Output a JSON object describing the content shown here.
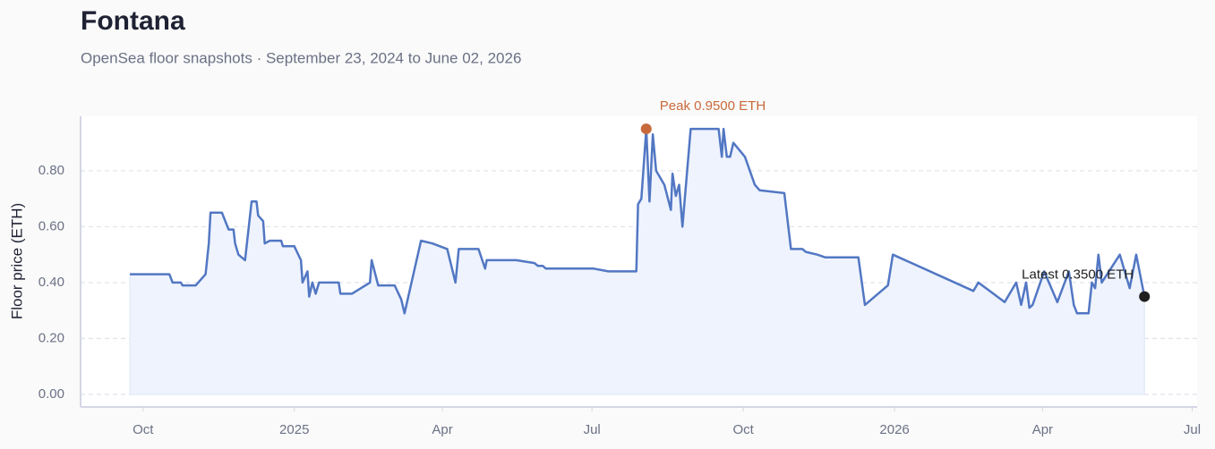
{
  "chart_data": {
    "type": "line",
    "title": "Fontana",
    "subtitle": "OpenSea floor snapshots · September 23, 2024 to June 02, 2026",
    "y_label": "Floor price (ETH)",
    "annotations": {
      "peak": "Peak 0.9500 ETH",
      "latest": "Latest 0.3500 ETH"
    },
    "color": "#5277c3",
    "area_color": "#eef3fd",
    "peak_color": "#c8693b",
    "latest_color": "#1f1f1f",
    "grid": true,
    "xlim": [
      "2024-08-24",
      "2026-07-04"
    ],
    "xticks": [
      {
        "value": "2024-10-01",
        "label": "Oct"
      },
      {
        "value": "2025-01-01",
        "label": "2025"
      },
      {
        "value": "2025-04-01",
        "label": "Apr"
      },
      {
        "value": "2025-07-01",
        "label": "Jul"
      },
      {
        "value": "2025-10-01",
        "label": "Oct"
      },
      {
        "value": "2026-01-01",
        "label": "2026"
      },
      {
        "value": "2026-04-01",
        "label": "Apr"
      },
      {
        "value": "2026-07-01",
        "label": "Jul"
      }
    ],
    "ylim": [
      -0.045,
      0.995
    ],
    "yticks": [
      {
        "value": 0,
        "label": "0.00"
      },
      {
        "value": 0.2,
        "label": "0.20"
      },
      {
        "value": 0.4,
        "label": "0.40"
      },
      {
        "value": 0.6,
        "label": "0.60"
      },
      {
        "value": 0.8,
        "label": "0.80"
      }
    ],
    "x": [
      "2024-09-23",
      "2024-10-17",
      "2024-10-19",
      "2024-10-24",
      "2024-10-25",
      "2024-11-02",
      "2024-11-08",
      "2024-11-10",
      "2024-11-11",
      "2024-11-18",
      "2024-11-22",
      "2024-11-25",
      "2024-11-26",
      "2024-11-28",
      "2024-12-02",
      "2024-12-06",
      "2024-12-09",
      "2024-12-10",
      "2024-12-13",
      "2024-12-14",
      "2024-12-17",
      "2024-12-24",
      "2024-12-25",
      "2025-01-01",
      "2025-01-05",
      "2025-01-06",
      "2025-01-09",
      "2025-01-10",
      "2025-01-12",
      "2025-01-14",
      "2025-01-16",
      "2025-01-18",
      "2025-01-28",
      "2025-01-29",
      "2025-02-05",
      "2025-02-16",
      "2025-02-17",
      "2025-02-21",
      "2025-03-03",
      "2025-03-07",
      "2025-03-09",
      "2025-03-19",
      "2025-03-26",
      "2025-04-04",
      "2025-04-09",
      "2025-04-11",
      "2025-04-23",
      "2025-04-27",
      "2025-04-28",
      "2025-05-16",
      "2025-05-27",
      "2025-05-29",
      "2025-06-01",
      "2025-06-03",
      "2025-07-02",
      "2025-07-11",
      "2025-07-28",
      "2025-07-29",
      "2025-07-31",
      "2025-08-03",
      "2025-08-05",
      "2025-08-07",
      "2025-08-09",
      "2025-08-14",
      "2025-08-18",
      "2025-08-19",
      "2025-08-21",
      "2025-08-23",
      "2025-08-25",
      "2025-08-30",
      "2025-09-16",
      "2025-09-18",
      "2025-09-19",
      "2025-09-21",
      "2025-09-23",
      "2025-09-25",
      "2025-10-02",
      "2025-10-08",
      "2025-10-11",
      "2025-10-26",
      "2025-10-30",
      "2025-11-06",
      "2025-11-08",
      "2025-11-15",
      "2025-11-20",
      "2025-12-10",
      "2025-12-14",
      "2025-12-28",
      "2025-12-31",
      "2026-02-18",
      "2026-02-21",
      "2026-03-09",
      "2026-03-16",
      "2026-03-19",
      "2026-03-22",
      "2026-03-24",
      "2026-03-26",
      "2026-04-02",
      "2026-04-10",
      "2026-04-17",
      "2026-04-20",
      "2026-04-22",
      "2026-04-29",
      "2026-05-01",
      "2026-05-03",
      "2026-05-05",
      "2026-05-07",
      "2026-05-18",
      "2026-05-24",
      "2026-05-28",
      "2026-06-02"
    ],
    "values": [
      0.43,
      0.43,
      0.4,
      0.4,
      0.39,
      0.39,
      0.43,
      0.54,
      0.65,
      0.65,
      0.59,
      0.59,
      0.54,
      0.5,
      0.48,
      0.69,
      0.69,
      0.64,
      0.62,
      0.54,
      0.55,
      0.55,
      0.53,
      0.53,
      0.48,
      0.4,
      0.44,
      0.35,
      0.4,
      0.36,
      0.4,
      0.4,
      0.4,
      0.36,
      0.36,
      0.4,
      0.48,
      0.39,
      0.39,
      0.34,
      0.29,
      0.55,
      0.54,
      0.52,
      0.4,
      0.52,
      0.52,
      0.45,
      0.48,
      0.48,
      0.47,
      0.46,
      0.46,
      0.45,
      0.45,
      0.44,
      0.44,
      0.68,
      0.7,
      0.95,
      0.69,
      0.93,
      0.8,
      0.75,
      0.66,
      0.79,
      0.71,
      0.75,
      0.6,
      0.95,
      0.95,
      0.85,
      0.95,
      0.85,
      0.85,
      0.9,
      0.85,
      0.75,
      0.73,
      0.72,
      0.52,
      0.52,
      0.51,
      0.5,
      0.49,
      0.49,
      0.32,
      0.39,
      0.5,
      0.37,
      0.4,
      0.33,
      0.4,
      0.32,
      0.4,
      0.31,
      0.32,
      0.44,
      0.33,
      0.44,
      0.32,
      0.29,
      0.29,
      0.4,
      0.38,
      0.5,
      0.4,
      0.5,
      0.38,
      0.5,
      0.35
    ]
  }
}
